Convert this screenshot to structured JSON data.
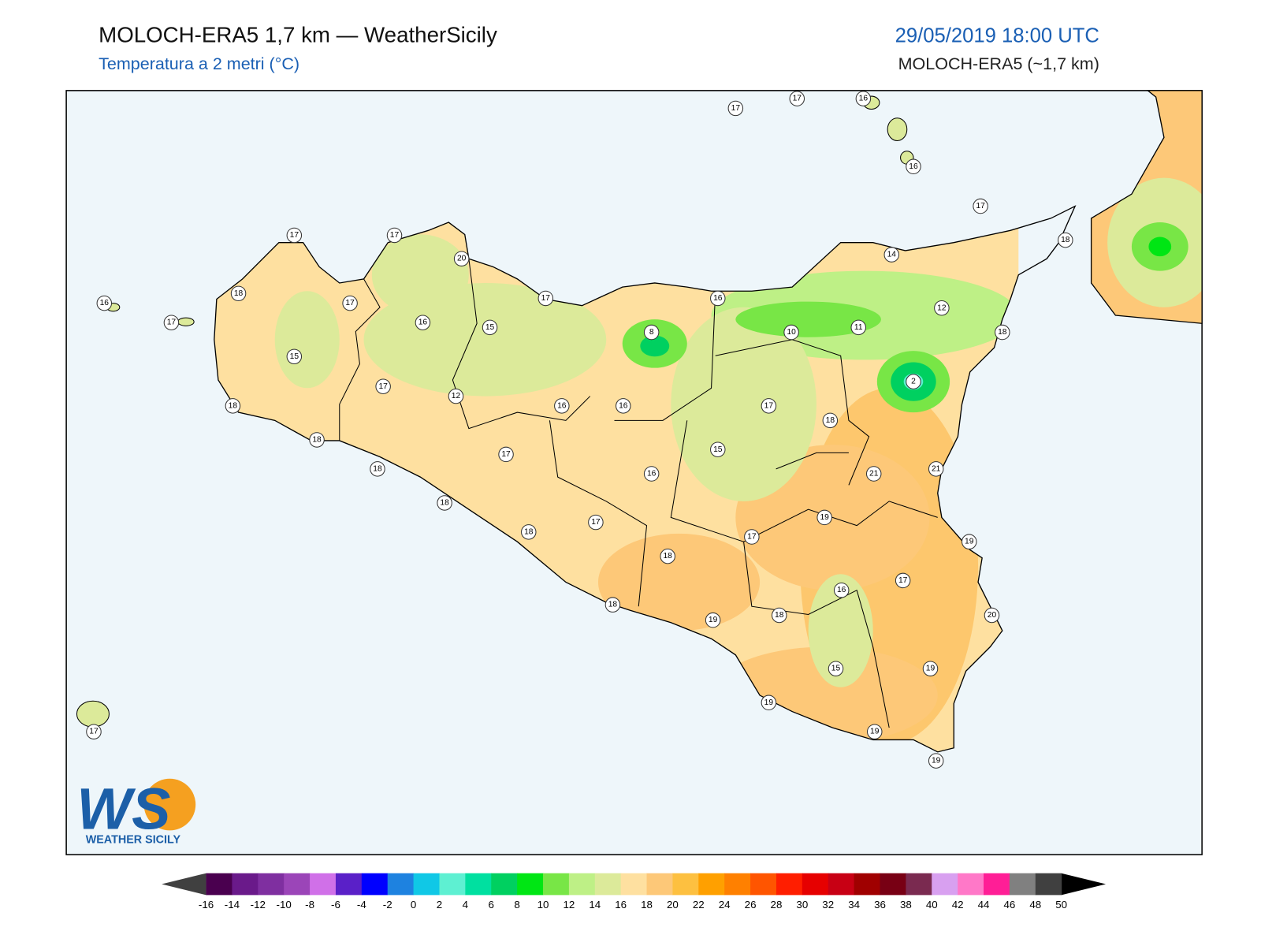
{
  "header": {
    "title": "MOLOCH-ERA5 1,7 km — WeatherSicily",
    "subtitle": "Temperatura a 2 metri (°C)",
    "datetime": "29/05/2019 18:00 UTC",
    "model": "MOLOCH-ERA5 (~1,7 km)"
  },
  "stations": [
    17,
    17,
    16,
    16,
    17,
    18,
    17,
    17,
    20,
    16,
    18,
    17,
    17,
    17,
    16,
    14,
    12,
    16,
    15,
    8,
    10,
    11,
    18,
    15,
    17,
    12,
    16,
    16,
    17,
    18,
    2,
    18,
    18,
    15,
    17,
    18,
    16,
    21,
    21,
    18,
    19,
    17,
    18,
    17,
    19,
    18,
    17,
    16,
    18,
    19,
    18,
    20,
    15,
    19,
    19,
    19,
    19,
    17
  ],
  "colorbar": {
    "ticks": [
      -16,
      -14,
      -12,
      -10,
      -8,
      -6,
      -4,
      -2,
      0,
      2,
      4,
      6,
      8,
      10,
      12,
      14,
      16,
      18,
      20,
      22,
      24,
      26,
      28,
      30,
      32,
      34,
      36,
      38,
      40,
      42,
      44,
      46,
      48,
      50
    ],
    "colors": [
      "#4a004f",
      "#6a1a8a",
      "#7f2fa0",
      "#9b45b8",
      "#d070e8",
      "#5a20c8",
      "#0000ff",
      "#1e82e0",
      "#10c8e6",
      "#5ef0d2",
      "#00e0a0",
      "#00d060",
      "#00e614",
      "#78e646",
      "#bef086",
      "#dcea9a",
      "#fee0a0",
      "#fdc878",
      "#fdc040",
      "#ffa000",
      "#ff8000",
      "#ff5500",
      "#ff1e00",
      "#e60000",
      "#c80014",
      "#a00000",
      "#780014",
      "#7a2a50",
      "#d8a0f0",
      "#ff78c8",
      "#ff1e96",
      "#808080",
      "#404040"
    ],
    "under_color": "#404040",
    "over_color": "#000000"
  },
  "logo": {
    "mark": "WS",
    "text": "WEATHER SICILY"
  }
}
